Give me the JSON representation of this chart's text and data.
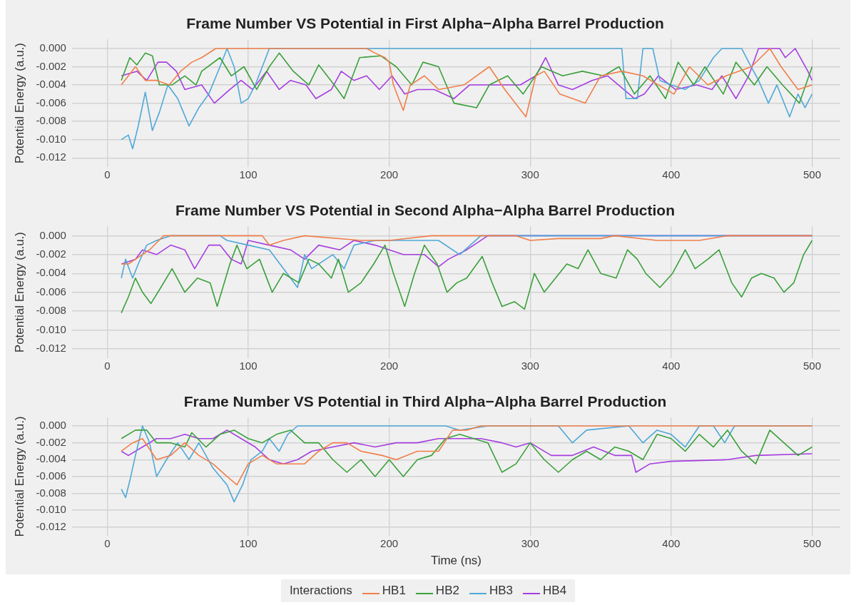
{
  "chart_data": [
    {
      "type": "line",
      "title": "Frame Number VS Potential in First Alpha−Alpha Barrel Production",
      "ylabel": "Potential Energy (a.u.)",
      "xlim": [
        -25,
        520
      ],
      "xticks": [
        0,
        100,
        200,
        300,
        400,
        500
      ],
      "ylim": [
        -0.013,
        0.001
      ],
      "yticks": [
        {
          "value": -0.012,
          "label": "-0.012"
        },
        {
          "value": -0.01,
          "label": "-0.010"
        },
        {
          "value": -0.008,
          "label": "-0.008"
        },
        {
          "value": -0.006,
          "label": "-0.006"
        },
        {
          "value": -0.004,
          "label": "-0.004"
        },
        {
          "value": -0.002,
          "label": "-0.002"
        },
        {
          "value": 0,
          "label": "0.000"
        }
      ],
      "grid": true,
      "line_style": "solid",
      "series": [
        {
          "color": "#f07f4a",
          "x": [
            10,
            20,
            27,
            35,
            44,
            52,
            60,
            67,
            77,
            184,
            190,
            197,
            200,
            203,
            210,
            215,
            225,
            235,
            253,
            271,
            282,
            297,
            304,
            310,
            321,
            339,
            350,
            365,
            380,
            402,
            413,
            426,
            439,
            457,
            470,
            478,
            490,
            500
          ],
          "values": [
            -0.004,
            -0.002,
            -0.0035,
            -0.0035,
            -0.004,
            -0.0025,
            -0.0015,
            -0.001,
            0,
            0,
            -0.0005,
            -0.001,
            -0.0015,
            -0.004,
            -0.0068,
            -0.004,
            -0.003,
            -0.0045,
            -0.004,
            -0.002,
            -0.0045,
            -0.0075,
            -0.003,
            -0.0025,
            -0.005,
            -0.006,
            -0.003,
            -0.0025,
            -0.003,
            -0.005,
            -0.002,
            -0.004,
            -0.003,
            -0.002,
            0,
            -0.002,
            -0.0045,
            -0.004
          ]
        },
        {
          "color": "#3aa03a",
          "x": [
            10,
            16,
            21,
            27,
            32,
            37,
            46,
            55,
            63,
            67,
            80,
            88,
            97,
            106,
            115,
            122,
            132,
            143,
            150,
            161,
            168,
            179,
            194,
            205,
            216,
            224,
            235,
            246,
            262,
            271,
            284,
            295,
            308,
            323,
            337,
            352,
            363,
            374,
            385,
            396,
            405,
            416,
            424,
            437,
            446,
            459,
            468,
            479,
            491,
            500
          ],
          "values": [
            -0.0035,
            -0.001,
            -0.0018,
            -0.0005,
            -0.0008,
            -0.004,
            -0.004,
            -0.003,
            -0.004,
            -0.0025,
            -0.001,
            -0.003,
            -0.002,
            -0.0045,
            -0.002,
            -0.0005,
            -0.0025,
            -0.004,
            -0.0018,
            -0.004,
            -0.0055,
            -0.001,
            -0.0008,
            -0.002,
            -0.004,
            -0.0015,
            -0.002,
            -0.006,
            -0.0065,
            -0.004,
            -0.003,
            -0.005,
            -0.002,
            -0.003,
            -0.0025,
            -0.003,
            -0.002,
            -0.005,
            -0.003,
            -0.0055,
            -0.0015,
            -0.004,
            -0.002,
            -0.005,
            -0.0015,
            -0.004,
            -0.002,
            -0.004,
            -0.006,
            -0.002
          ]
        },
        {
          "color": "#4fa8d8",
          "x": [
            10,
            15,
            18,
            22,
            27,
            32,
            37,
            43,
            50,
            58,
            65,
            72,
            80,
            85,
            90,
            95,
            100,
            105,
            110,
            115,
            365,
            368,
            376,
            380,
            387,
            392,
            400,
            410,
            420,
            430,
            436,
            450,
            455,
            462,
            469,
            475,
            484,
            490,
            495,
            500
          ],
          "values": [
            -0.01,
            -0.0095,
            -0.011,
            -0.0085,
            -0.0048,
            -0.009,
            -0.007,
            -0.004,
            -0.0055,
            -0.0085,
            -0.0065,
            -0.005,
            -0.002,
            0,
            -0.002,
            -0.006,
            -0.0055,
            -0.004,
            -0.002,
            0,
            0,
            -0.0055,
            -0.0055,
            0,
            0,
            -0.0035,
            -0.004,
            -0.0045,
            -0.0035,
            -0.001,
            0,
            0,
            -0.0015,
            -0.0035,
            -0.006,
            -0.004,
            -0.0075,
            -0.005,
            -0.0065,
            -0.005
          ]
        },
        {
          "color": "#a63ee0",
          "x": [
            10,
            21,
            28,
            36,
            42,
            49,
            55,
            67,
            76,
            87,
            95,
            103,
            113,
            122,
            130,
            141,
            148,
            159,
            166,
            175,
            184,
            193,
            202,
            211,
            220,
            232,
            246,
            257,
            271,
            282,
            293,
            304,
            311,
            320,
            330,
            344,
            355,
            374,
            381,
            391,
            403,
            418,
            429,
            436,
            446,
            455,
            462,
            477,
            481,
            488,
            497,
            500
          ],
          "values": [
            -0.003,
            -0.0025,
            -0.0035,
            -0.0015,
            -0.0015,
            -0.0025,
            -0.0045,
            -0.004,
            -0.006,
            -0.0045,
            -0.0035,
            -0.0045,
            -0.0025,
            -0.0045,
            -0.0035,
            -0.004,
            -0.0055,
            -0.0045,
            -0.0025,
            -0.0035,
            -0.003,
            -0.0045,
            -0.003,
            -0.005,
            -0.0045,
            -0.0045,
            -0.0055,
            -0.004,
            -0.004,
            -0.004,
            -0.004,
            -0.003,
            -0.001,
            -0.004,
            -0.0045,
            -0.0035,
            -0.003,
            -0.0055,
            -0.005,
            -0.003,
            -0.0045,
            -0.004,
            -0.0045,
            -0.003,
            -0.0055,
            -0.003,
            0,
            0,
            -0.001,
            0,
            -0.0025,
            -0.0035
          ]
        }
      ]
    },
    {
      "type": "line",
      "title": "Frame Number VS Potential in Second Alpha−Alpha Barrel Production",
      "ylabel": "Potential Energy (a.u.)",
      "xlim": [
        -25,
        520
      ],
      "xticks": [
        0,
        100,
        200,
        300,
        400,
        500
      ],
      "ylim": [
        -0.013,
        0.001
      ],
      "yticks": [
        {
          "value": -0.012,
          "label": "-0.012"
        },
        {
          "value": -0.01,
          "label": "-0.010"
        },
        {
          "value": -0.008,
          "label": "-0.008"
        },
        {
          "value": -0.006,
          "label": "-0.006"
        },
        {
          "value": -0.004,
          "label": "-0.004"
        },
        {
          "value": -0.002,
          "label": "-0.002"
        },
        {
          "value": 0,
          "label": "0.000"
        }
      ],
      "grid": true,
      "line_style": "solid",
      "series": [
        {
          "color": "#f07f4a",
          "x": [
            10,
            15,
            20,
            30,
            40,
            110,
            115,
            125,
            140,
            180,
            200,
            230,
            290,
            300,
            320,
            350,
            360,
            390,
            420,
            440,
            500
          ],
          "values": [
            -0.003,
            -0.003,
            -0.0025,
            -0.0015,
            0,
            0,
            -0.001,
            -0.0005,
            0,
            -0.0005,
            -0.0005,
            0,
            0,
            -0.0005,
            -0.0003,
            -0.0003,
            0,
            -0.0005,
            -0.0005,
            0,
            0
          ]
        },
        {
          "color": "#3aa03a",
          "x": [
            10,
            15,
            20,
            25,
            31,
            38,
            46,
            55,
            64,
            73,
            78,
            87,
            92,
            99,
            108,
            117,
            125,
            136,
            143,
            150,
            159,
            164,
            171,
            180,
            189,
            197,
            203,
            211,
            218,
            225,
            234,
            241,
            248,
            255,
            266,
            273,
            280,
            289,
            296,
            303,
            310,
            318,
            326,
            334,
            341,
            350,
            361,
            369,
            376,
            382,
            392,
            401,
            410,
            417,
            426,
            434,
            443,
            450,
            457,
            464,
            473,
            480,
            487,
            494,
            500
          ],
          "values": [
            -0.0082,
            -0.0065,
            -0.0045,
            -0.006,
            -0.0072,
            -0.0055,
            -0.0035,
            -0.006,
            -0.0045,
            -0.005,
            -0.0075,
            -0.003,
            -0.001,
            -0.0035,
            -0.0025,
            -0.006,
            -0.004,
            -0.005,
            -0.0025,
            -0.003,
            -0.0045,
            -0.0025,
            -0.006,
            -0.005,
            -0.003,
            -0.001,
            -0.004,
            -0.0075,
            -0.004,
            -0.001,
            -0.003,
            -0.006,
            -0.005,
            -0.0045,
            -0.0022,
            -0.005,
            -0.0075,
            -0.007,
            -0.0078,
            -0.004,
            -0.006,
            -0.0045,
            -0.003,
            -0.0035,
            -0.0015,
            -0.004,
            -0.0045,
            -0.0015,
            -0.0025,
            -0.004,
            -0.0055,
            -0.004,
            -0.0015,
            -0.0035,
            -0.0025,
            -0.0015,
            -0.005,
            -0.0065,
            -0.0045,
            -0.004,
            -0.0045,
            -0.006,
            -0.005,
            -0.002,
            -0.0005
          ]
        },
        {
          "color": "#4fa8d8",
          "x": [
            10,
            13,
            18,
            22,
            28,
            35,
            45,
            80,
            85,
            100,
            115,
            125,
            135,
            140,
            145,
            160,
            168,
            175,
            190,
            220,
            235,
            250,
            265,
            500
          ],
          "values": [
            -0.0045,
            -0.0025,
            -0.0045,
            -0.003,
            -0.001,
            -0.0005,
            0,
            0,
            -0.0005,
            -0.001,
            -0.0015,
            -0.0035,
            -0.0055,
            -0.002,
            -0.0035,
            -0.002,
            -0.0035,
            -0.001,
            -0.0005,
            -0.0005,
            -0.0005,
            -0.002,
            0,
            0
          ]
        },
        {
          "color": "#a63ee0",
          "x": [
            10,
            20,
            25,
            35,
            45,
            55,
            62,
            72,
            80,
            88,
            95,
            100,
            115,
            130,
            140,
            150,
            165,
            175,
            190,
            210,
            225,
            235,
            242,
            255,
            270,
            500
          ],
          "values": [
            -0.003,
            -0.0025,
            -0.0015,
            -0.002,
            -0.001,
            -0.0015,
            -0.0035,
            -0.001,
            -0.001,
            -0.0025,
            -0.003,
            -0.0005,
            -0.001,
            -0.0015,
            -0.0025,
            -0.001,
            -0.0015,
            -0.0005,
            -0.001,
            -0.002,
            -0.002,
            -0.0033,
            -0.0025,
            -0.0015,
            0,
            0
          ]
        }
      ]
    },
    {
      "type": "line",
      "title": "Frame Number VS Potential in Third Alpha−Alpha Barrel Production",
      "xlabel": "Time (ns)",
      "ylabel": "Potential Energy (a.u.)",
      "legend_title": "Interactions",
      "legend": "bottom",
      "xlim": [
        -25,
        520
      ],
      "xticks": [
        0,
        100,
        200,
        300,
        400,
        500
      ],
      "ylim": [
        -0.013,
        0.001
      ],
      "yticks": [
        {
          "value": -0.012,
          "label": "-0.012"
        },
        {
          "value": -0.01,
          "label": "-0.010"
        },
        {
          "value": -0.008,
          "label": "-0.008"
        },
        {
          "value": -0.006,
          "label": "-0.006"
        },
        {
          "value": -0.004,
          "label": "-0.004"
        },
        {
          "value": -0.002,
          "label": "-0.002"
        },
        {
          "value": 0,
          "label": "0.000"
        }
      ],
      "grid": true,
      "line_style": "solid",
      "series": [
        {
          "name": "HB1",
          "color": "#f07f4a",
          "x": [
            10,
            18,
            25,
            35,
            45,
            55,
            65,
            75,
            85,
            92,
            100,
            110,
            120,
            130,
            140,
            150,
            160,
            170,
            180,
            195,
            205,
            220,
            235,
            245,
            255,
            265,
            500
          ],
          "values": [
            -0.003,
            -0.002,
            -0.0015,
            -0.004,
            -0.0035,
            -0.002,
            -0.0035,
            -0.0045,
            -0.006,
            -0.007,
            -0.0045,
            -0.0035,
            -0.0045,
            -0.0045,
            -0.0045,
            -0.003,
            -0.002,
            -0.002,
            -0.003,
            -0.0035,
            -0.004,
            -0.003,
            -0.003,
            -0.0005,
            -0.0005,
            0,
            0
          ]
        },
        {
          "name": "HB2",
          "color": "#3aa03a",
          "x": [
            10,
            20,
            28,
            35,
            45,
            55,
            60,
            70,
            80,
            90,
            100,
            110,
            120,
            130,
            140,
            150,
            160,
            170,
            180,
            190,
            200,
            210,
            220,
            230,
            240,
            250,
            260,
            270,
            280,
            290,
            300,
            310,
            320,
            330,
            340,
            350,
            360,
            370,
            380,
            390,
            400,
            410,
            420,
            430,
            440,
            450,
            460,
            470,
            480,
            490,
            500
          ],
          "values": [
            -0.0015,
            -0.0005,
            -0.0005,
            -0.002,
            -0.002,
            -0.0025,
            -0.0008,
            -0.0025,
            -0.001,
            -0.0005,
            -0.0015,
            -0.002,
            -0.001,
            -0.0005,
            -0.002,
            -0.002,
            -0.004,
            -0.0055,
            -0.004,
            -0.006,
            -0.004,
            -0.006,
            -0.004,
            -0.0035,
            -0.0015,
            -0.001,
            -0.0015,
            -0.002,
            -0.0055,
            -0.0045,
            -0.002,
            -0.004,
            -0.0055,
            -0.004,
            -0.003,
            -0.004,
            -0.0025,
            -0.003,
            -0.004,
            -0.001,
            -0.0015,
            -0.003,
            -0.001,
            -0.0025,
            -0.0005,
            -0.003,
            -0.0045,
            -0.0005,
            -0.002,
            -0.0035,
            -0.0025
          ]
        },
        {
          "name": "HB3",
          "color": "#4fa8d8",
          "x": [
            10,
            13,
            16,
            20,
            25,
            30,
            35,
            42,
            50,
            58,
            65,
            75,
            85,
            90,
            96,
            102,
            110,
            115,
            122,
            128,
            135,
            240,
            250,
            270,
            320,
            330,
            340,
            370,
            380,
            390,
            400,
            410,
            420,
            430,
            438,
            445,
            500
          ],
          "values": [
            -0.0075,
            -0.0085,
            -0.0065,
            -0.0035,
            0,
            -0.002,
            -0.006,
            -0.004,
            -0.002,
            -0.004,
            -0.002,
            -0.005,
            -0.007,
            -0.009,
            -0.007,
            -0.004,
            -0.003,
            -0.0015,
            -0.003,
            -0.001,
            0,
            0,
            -0.0005,
            0,
            0,
            -0.002,
            -0.0005,
            0,
            -0.002,
            -0.0005,
            -0.001,
            -0.0025,
            0,
            0,
            -0.002,
            0,
            0
          ]
        },
        {
          "name": "HB4",
          "color": "#a63ee0",
          "x": [
            10,
            15,
            25,
            35,
            45,
            55,
            65,
            75,
            85,
            95,
            105,
            115,
            125,
            135,
            145,
            160,
            175,
            190,
            205,
            220,
            235,
            250,
            265,
            280,
            290,
            300,
            315,
            330,
            345,
            360,
            372,
            375,
            385,
            400,
            440,
            460,
            500
          ],
          "values": [
            -0.003,
            -0.0035,
            -0.0025,
            -0.0015,
            -0.0015,
            -0.001,
            -0.0015,
            -0.0015,
            -0.0005,
            -0.0015,
            -0.0025,
            -0.004,
            -0.0045,
            -0.004,
            -0.003,
            -0.0025,
            -0.002,
            -0.0025,
            -0.002,
            -0.002,
            -0.0015,
            -0.0015,
            -0.0015,
            -0.002,
            -0.0025,
            -0.002,
            -0.0035,
            -0.0035,
            -0.0025,
            -0.0035,
            -0.0035,
            -0.0055,
            -0.0045,
            -0.0042,
            -0.004,
            -0.0035,
            -0.0033
          ]
        }
      ]
    }
  ]
}
